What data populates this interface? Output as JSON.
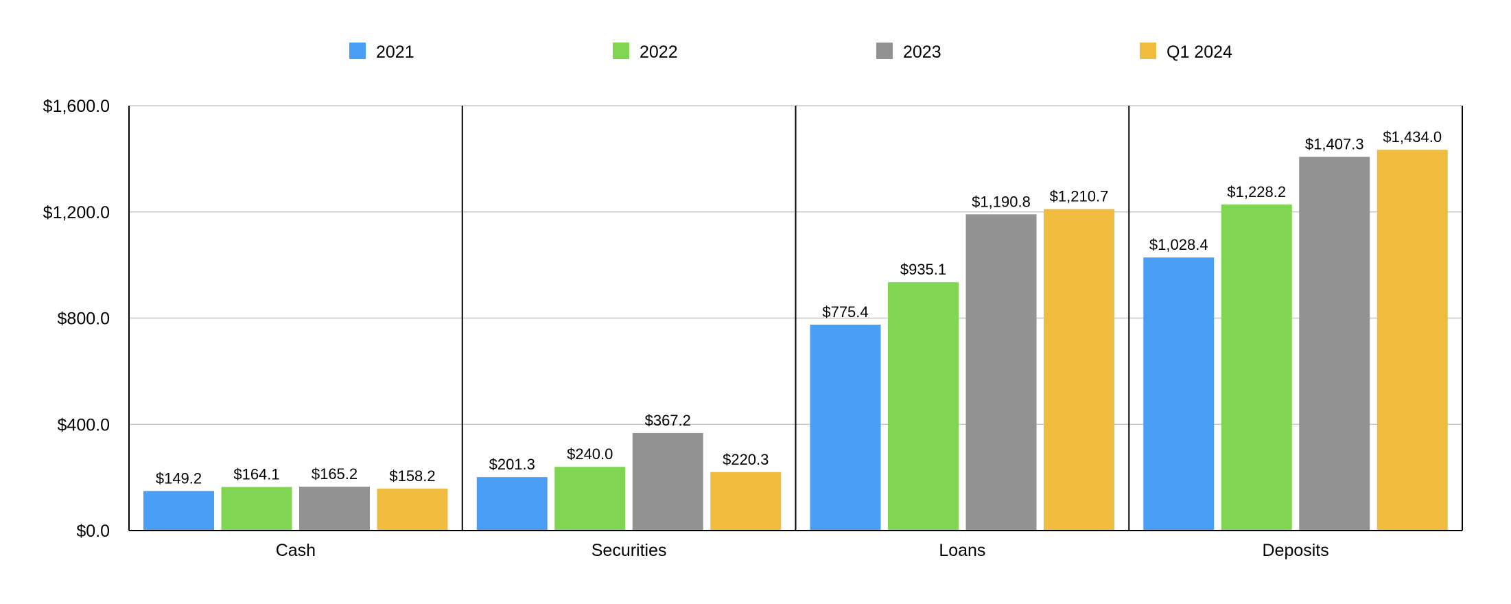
{
  "chart_data": {
    "type": "bar",
    "categories": [
      "Cash",
      "Securities",
      "Loans",
      "Deposits"
    ],
    "series": [
      {
        "name": "2021",
        "color": "#4a9ff5",
        "values": [
          149.2,
          201.3,
          775.4,
          1028.4
        ]
      },
      {
        "name": "2022",
        "color": "#80d552",
        "values": [
          164.1,
          240.0,
          935.1,
          1228.2
        ]
      },
      {
        "name": "2023",
        "color": "#929292",
        "values": [
          165.2,
          367.2,
          1190.8,
          1407.3
        ]
      },
      {
        "name": "Q1 2024",
        "color": "#efbc40",
        "values": [
          158.2,
          220.3,
          1210.7,
          1434.0
        ]
      }
    ],
    "data_labels": [
      [
        "$149.2",
        "$201.3",
        "$775.4",
        "$1,028.4"
      ],
      [
        "$164.1",
        "$240.0",
        "$935.1",
        "$1,228.2"
      ],
      [
        "$165.2",
        "$367.2",
        "$1,190.8",
        "$1,407.3"
      ],
      [
        "$158.2",
        "$220.3",
        "$1,210.7",
        "$1,434.0"
      ]
    ],
    "y_ticks": [
      0,
      400,
      800,
      1200,
      1600
    ],
    "y_tick_labels": [
      "$0.0",
      "$400.0",
      "$800.0",
      "$1,200.0",
      "$1,600.0"
    ],
    "ylim": [
      0,
      1600
    ],
    "grid": true,
    "legend_position": "top-center"
  }
}
